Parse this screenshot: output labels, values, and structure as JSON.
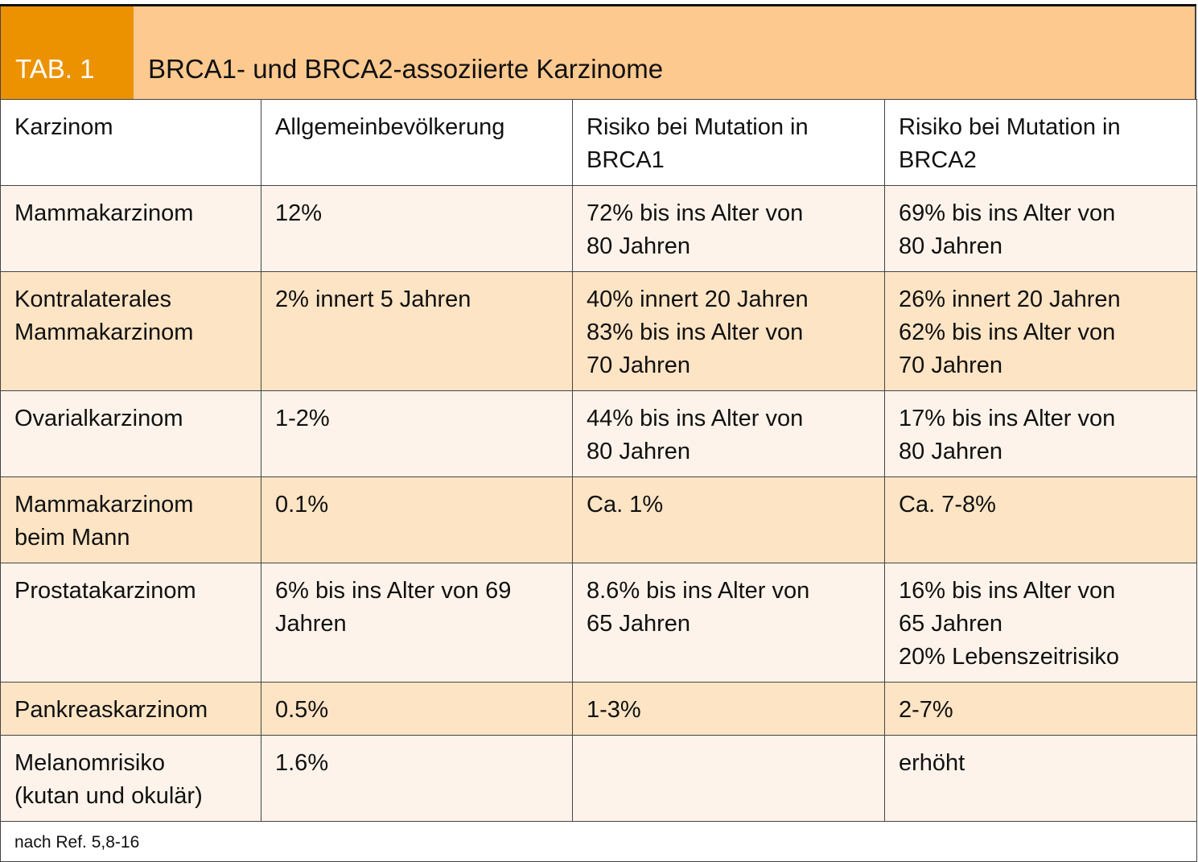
{
  "header": {
    "tab_label": "TAB. 1",
    "title": "BRCA1- und BRCA2-assoziierte Karzinome"
  },
  "colors": {
    "tab_orange": "#ec9200",
    "title_bg": "#fdc98f",
    "row_light": "#fdf3ea",
    "row_dark": "#fde4c4"
  },
  "table": {
    "columns": [
      "Karzinom",
      "Allgemeinbevölkerung",
      "Risiko bei Mutation in\nBRCA1",
      "Risiko bei Mutation in\nBRCA2"
    ],
    "rows": [
      [
        "Mammakarzinom",
        "12%",
        "72% bis ins Alter von\n80 Jahren",
        "69% bis ins Alter von\n80 Jahren"
      ],
      [
        "Kontralaterales\nMammakarzinom",
        "2% innert 5 Jahren",
        "40% innert 20 Jahren\n83% bis ins Alter von\n70 Jahren",
        "26% innert 20 Jahren\n62% bis ins Alter von\n70 Jahren"
      ],
      [
        "Ovarialkarzinom",
        "1-2%",
        "44% bis ins Alter von\n80 Jahren",
        "17% bis ins Alter von\n80 Jahren"
      ],
      [
        "Mammakarzinom\nbeim Mann",
        "0.1%",
        "Ca. 1%",
        "Ca. 7-8%"
      ],
      [
        "Prostatakarzinom",
        "6% bis ins Alter von 69\nJahren",
        "8.6% bis ins Alter von\n65 Jahren",
        "16% bis ins Alter von\n65 Jahren\n20% Lebenszeitrisiko"
      ],
      [
        "Pankreaskarzinom",
        "0.5%",
        "1-3%",
        "2-7%"
      ],
      [
        "Melanomrisiko\n(kutan und okulär)",
        "1.6%",
        "",
        "erhöht"
      ]
    ],
    "footnote": "nach Ref. 5,8-16"
  }
}
